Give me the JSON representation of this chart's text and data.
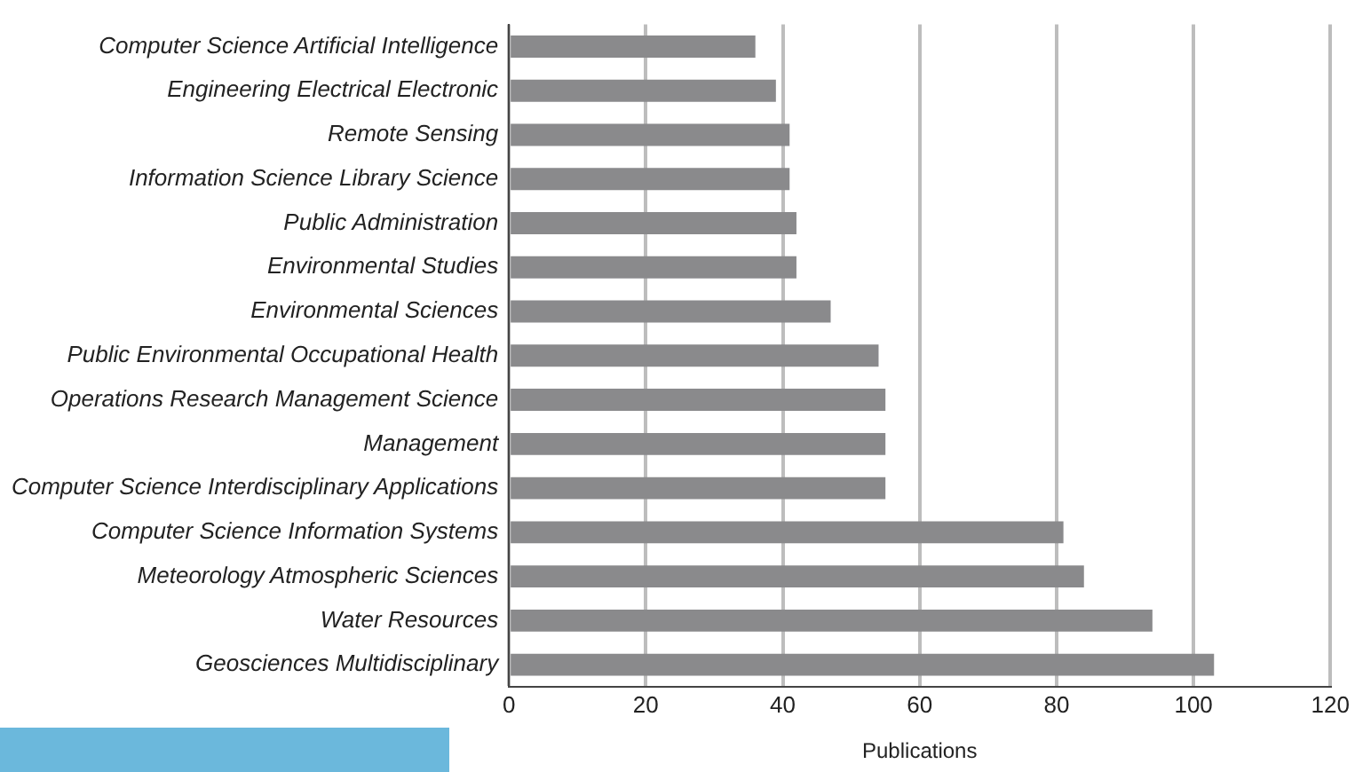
{
  "chart_data": {
    "type": "bar",
    "orientation": "horizontal",
    "xlabel": "Publications",
    "categories": [
      "Computer Science Artificial Intelligence",
      "Engineering Electrical Electronic",
      "Remote Sensing",
      "Information Science Library Science",
      "Public Administration",
      "Environmental Studies",
      "Environmental Sciences",
      "Public Environmental Occupational Health",
      "Operations Research Management Science",
      "Management",
      "Computer Science Interdisciplinary Applications",
      "Computer Science Information Systems",
      "Meteorology Atmospheric Sciences",
      "Water Resources",
      "Geosciences Multidisciplinary"
    ],
    "values": [
      36,
      39,
      41,
      41,
      42,
      42,
      47,
      54,
      55,
      55,
      55,
      81,
      84,
      94,
      103
    ],
    "color": "#8a8a8c",
    "xlim": [
      0,
      120
    ],
    "xticks": [
      0,
      20,
      40,
      60,
      80,
      100,
      120
    ],
    "grid": "x",
    "legend": false
  }
}
